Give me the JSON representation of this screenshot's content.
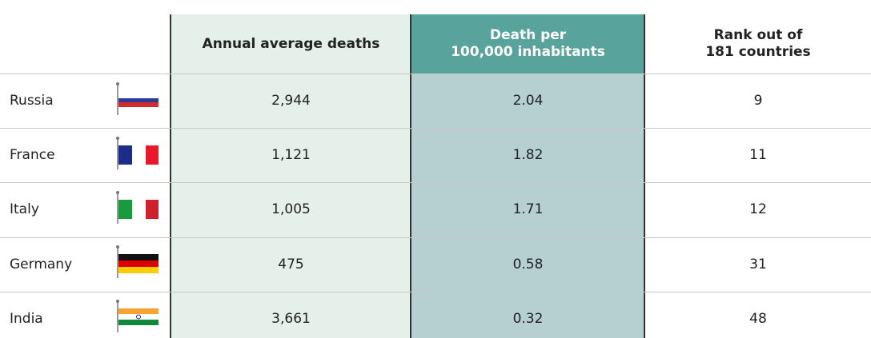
{
  "table": {
    "headers": [
      [
        "Annual average deaths"
      ],
      [
        "Death per",
        "100,000 inhabitants"
      ],
      [
        "Rank out of",
        "181 countries"
      ]
    ],
    "rows": [
      [
        "Russia",
        "2,944",
        "2.04",
        "9"
      ],
      [
        "France",
        "1,121",
        "1.82",
        "11"
      ],
      [
        "Italy",
        "1,005",
        "1.71",
        "12"
      ],
      [
        "Germany",
        "475",
        "0.58",
        "31"
      ],
      [
        "India",
        "3,661",
        "0.32",
        "48"
      ]
    ]
  }
}
